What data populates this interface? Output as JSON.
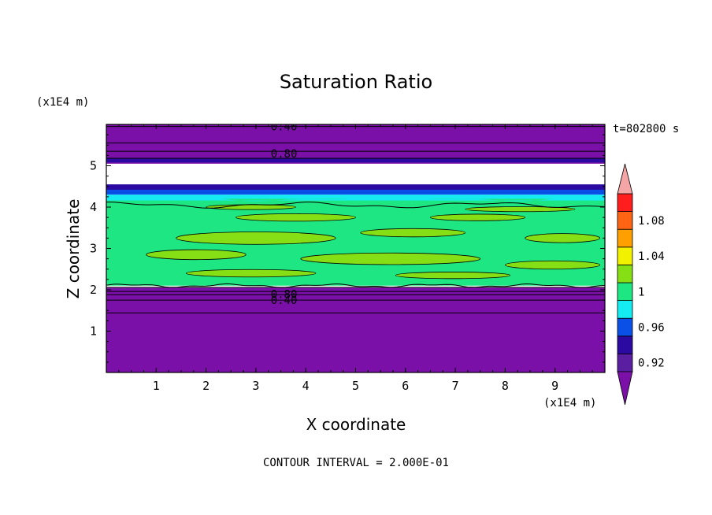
{
  "chart_data": {
    "type": "heatmap",
    "title": "Saturation Ratio",
    "xlabel": "X coordinate",
    "ylabel": "Z coordinate",
    "x_unit": "(x1E4 m)",
    "z_unit": "(x1E4 m)",
    "time_label": "t=802800 s",
    "footer": "CONTOUR INTERVAL = 2.000E-01",
    "xlim": [
      0,
      10
    ],
    "ylim": [
      0,
      6
    ],
    "x_ticks": [
      "1",
      "2",
      "3",
      "4",
      "5",
      "6",
      "7",
      "8",
      "9"
    ],
    "y_ticks": [
      "1",
      "2",
      "3",
      "4",
      "5"
    ],
    "colorbar": {
      "levels": [
        0.92,
        0.94,
        0.96,
        0.98,
        1.0,
        1.02,
        1.04,
        1.06,
        1.08,
        1.1
      ],
      "labels": [
        "0.92",
        "0.96",
        "1",
        "1.04",
        "1.08"
      ],
      "label_values": [
        0.92,
        0.96,
        1.0,
        1.04,
        1.08
      ],
      "colors": [
        "#5a1ea0",
        "#2a0aa0",
        "#0a50e6",
        "#14ecf2",
        "#1ee682",
        "#86de14",
        "#f2f200",
        "#ffa000",
        "#ff6414",
        "#ff1e1e"
      ],
      "below_color": "#7a10a8",
      "above_color": "#f4a6a6"
    },
    "contour_labels": [
      {
        "text": "0.40",
        "x": 3.5,
        "y": 5.95
      },
      {
        "text": "0.80",
        "x": 3.5,
        "y": 5.3
      },
      {
        "text": "0.80",
        "x": 3.5,
        "y": 1.9
      },
      {
        "text": "0.40",
        "x": 3.5,
        "y": 1.75
      }
    ],
    "bands": [
      {
        "name": "upper dry layer",
        "z": [
          5.05,
          6.0
        ],
        "color": "#7a10a8"
      },
      {
        "name": "dark blue thin layer",
        "z": [
          5.08,
          5.18
        ],
        "color": "#2a0aa0"
      },
      {
        "name": "upper transition",
        "z": [
          4.35,
          4.55
        ],
        "color": "#2a0aa0"
      },
      {
        "name": "upper transition blue",
        "z": [
          4.3,
          4.42
        ],
        "color": "#0a50e6"
      },
      {
        "name": "upper transition cyan",
        "z": [
          4.18,
          4.3
        ],
        "color": "#14ecf2"
      },
      {
        "name": "cloud layer",
        "z": [
          2.1,
          4.2
        ],
        "color": "#1ee682"
      },
      {
        "name": "lower dry layer",
        "z": [
          0.0,
          2.05
        ],
        "color": "#7a10a8"
      }
    ],
    "contours_z": [
      5.95,
      5.55,
      5.35,
      5.18,
      2.06,
      1.96,
      1.88,
      1.75,
      1.44
    ],
    "patches": [
      {
        "x": 2.6,
        "z": 3.75,
        "w": 2.4,
        "h": 0.18
      },
      {
        "x": 6.5,
        "z": 3.75,
        "w": 1.9,
        "h": 0.16
      },
      {
        "x": 1.4,
        "z": 3.25,
        "w": 3.2,
        "h": 0.3
      },
      {
        "x": 5.1,
        "z": 3.38,
        "w": 2.1,
        "h": 0.2
      },
      {
        "x": 8.4,
        "z": 3.25,
        "w": 1.5,
        "h": 0.22
      },
      {
        "x": 0.8,
        "z": 2.85,
        "w": 2.0,
        "h": 0.24
      },
      {
        "x": 3.9,
        "z": 2.75,
        "w": 3.6,
        "h": 0.28
      },
      {
        "x": 8.0,
        "z": 2.6,
        "w": 1.9,
        "h": 0.2
      },
      {
        "x": 1.6,
        "z": 2.4,
        "w": 2.6,
        "h": 0.18
      },
      {
        "x": 5.8,
        "z": 2.35,
        "w": 2.3,
        "h": 0.16
      },
      {
        "x": 2.0,
        "z": 4.0,
        "w": 1.8,
        "h": 0.12
      },
      {
        "x": 7.2,
        "z": 3.95,
        "w": 2.2,
        "h": 0.12
      }
    ]
  }
}
